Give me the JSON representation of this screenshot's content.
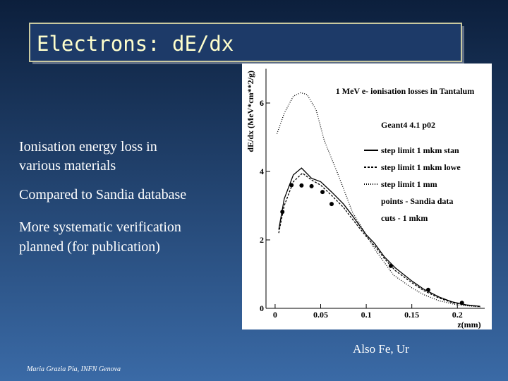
{
  "slide": {
    "title": "Electrons: dE/dx",
    "bullets": [
      "Ionisation energy loss in",
      "various materials",
      "Compared to Sandia database",
      "More systematic verification",
      "planned (for publication)"
    ],
    "note": "Also Fe, Ur",
    "footer": "Maria Grazia Pia, INFN Genova"
  },
  "chart_data": {
    "type": "line",
    "title": "1 MeV e- ionisation losses in Tantalum",
    "annotations": [
      "Geant4 4.1 p02",
      "cuts - 1 mkm"
    ],
    "x_label": "z(mm)",
    "y_label": "dE/dx (MeV*cm**2/g)",
    "xlim": [
      -0.01,
      0.23
    ],
    "ylim": [
      0,
      7
    ],
    "xticks": [
      0,
      0.05,
      0.1,
      0.15,
      0.2
    ],
    "yticks": [
      0,
      2,
      4,
      6
    ],
    "series": [
      {
        "name": "step limit 1 mkm stan",
        "color": "#000000",
        "dash": "none",
        "mode": "line",
        "x": [
          0.004,
          0.01,
          0.02,
          0.029,
          0.04,
          0.05,
          0.062,
          0.075,
          0.085,
          0.1,
          0.109,
          0.12,
          0.132,
          0.15,
          0.163,
          0.18,
          0.194,
          0.21,
          0.225
        ],
        "values": [
          2.3,
          3.2,
          3.9,
          4.1,
          3.8,
          3.7,
          3.4,
          3.05,
          2.7,
          2.15,
          1.9,
          1.5,
          1.18,
          0.8,
          0.56,
          0.33,
          0.19,
          0.1,
          0.06
        ]
      },
      {
        "name": "step limit 1 mkm lowe",
        "color": "#000000",
        "dash": "3,2",
        "mode": "line",
        "x": [
          0.004,
          0.01,
          0.02,
          0.03,
          0.04,
          0.05,
          0.062,
          0.075,
          0.085,
          0.1,
          0.11,
          0.12,
          0.132,
          0.15,
          0.163,
          0.18,
          0.194,
          0.21,
          0.225
        ],
        "values": [
          2.2,
          3.0,
          3.7,
          3.95,
          3.75,
          3.6,
          3.3,
          2.95,
          2.6,
          2.1,
          1.8,
          1.45,
          1.1,
          0.75,
          0.52,
          0.3,
          0.17,
          0.09,
          0.05
        ]
      },
      {
        "name": "step limit 1 mm",
        "color": "#000000",
        "dash": "1,2",
        "mode": "line",
        "x": [
          0.002,
          0.01,
          0.02,
          0.028,
          0.035,
          0.045,
          0.054,
          0.07,
          0.085,
          0.1,
          0.11,
          0.13,
          0.15,
          0.163,
          0.18,
          0.2,
          0.225
        ],
        "values": [
          5.1,
          5.7,
          6.2,
          6.3,
          6.25,
          5.8,
          4.9,
          3.85,
          2.8,
          2.15,
          1.7,
          0.97,
          0.6,
          0.4,
          0.22,
          0.1,
          0.04
        ]
      },
      {
        "name": "points - Sandia data",
        "color": "#000000",
        "mode": "markers",
        "x": [
          0.008,
          0.018,
          0.029,
          0.04,
          0.052,
          0.062,
          0.127,
          0.168,
          0.205
        ],
        "values": [
          2.82,
          3.6,
          3.59,
          3.57,
          3.4,
          3.05,
          1.24,
          0.54,
          0.16
        ]
      }
    ]
  }
}
